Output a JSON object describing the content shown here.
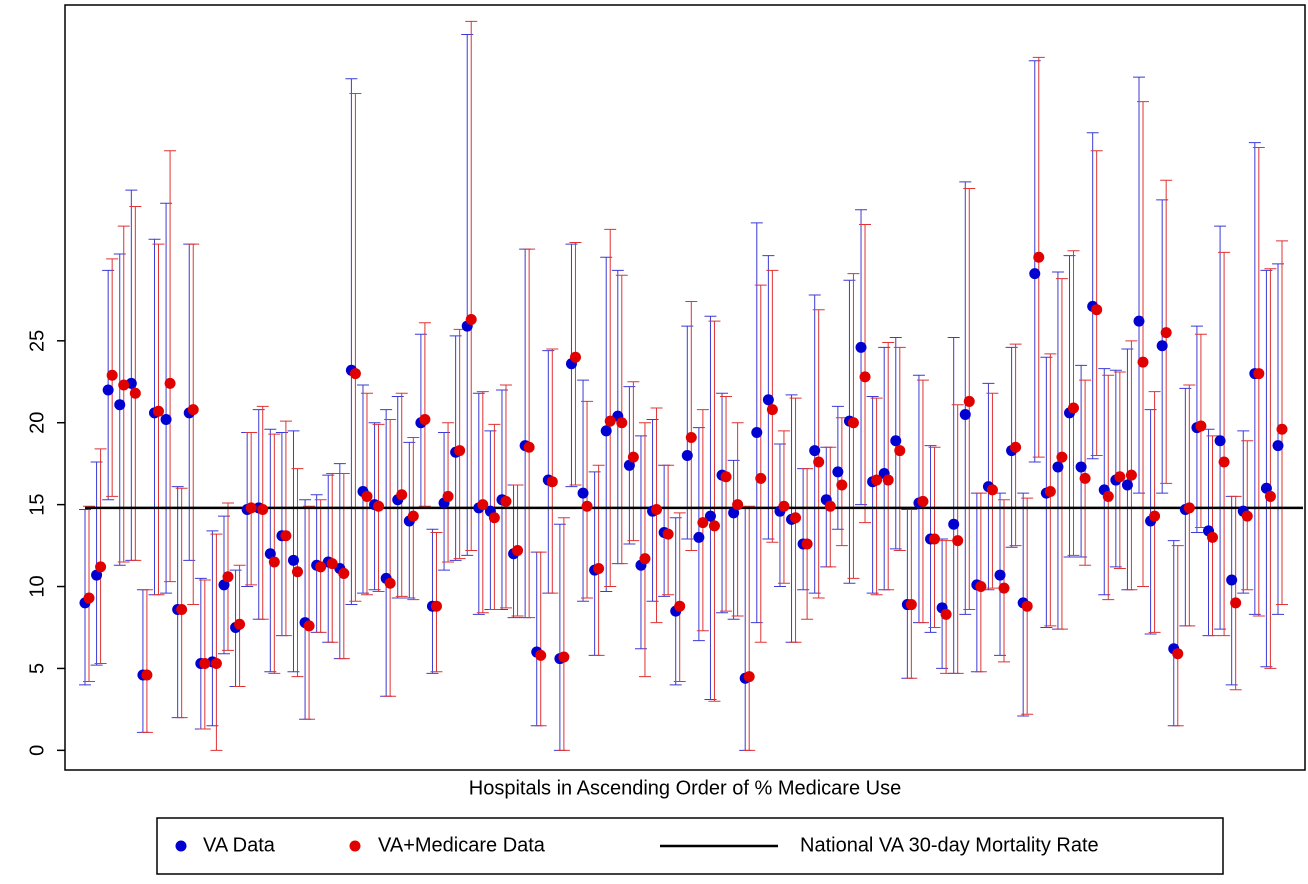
{
  "chart_data": {
    "type": "errorbar",
    "x_label": "Hospitals in Ascending Order of % Medicare Use",
    "categories": [
      null,
      null,
      null,
      null,
      null,
      null,
      null,
      null,
      null,
      null,
      null,
      null,
      null,
      null,
      null,
      null,
      null,
      null,
      null,
      null,
      null,
      null,
      null,
      null,
      null,
      null,
      null,
      null,
      null,
      null,
      null,
      null,
      null,
      null,
      null,
      null,
      null,
      null,
      null,
      null,
      null,
      null,
      null,
      null,
      null,
      null,
      null,
      null,
      null,
      null,
      null,
      null,
      null,
      null,
      null,
      null,
      null,
      null,
      null,
      null,
      null,
      null,
      null,
      null,
      null,
      null,
      null,
      null,
      null,
      null,
      null,
      null,
      null,
      null,
      null,
      null,
      null,
      null,
      null,
      null,
      null,
      null,
      null,
      null,
      null,
      null,
      null,
      null,
      null,
      null,
      null,
      null,
      null,
      null,
      null,
      null,
      null,
      null,
      null,
      null,
      null,
      null,
      null,
      null
    ],
    "ylim": [
      -1.2,
      45.5
    ],
    "yticks": [
      0,
      5,
      10,
      15,
      20,
      25
    ],
    "series": [
      {
        "name": "VA Data",
        "color": "#0000d0",
        "whisker_color": "#3b3bd6",
        "values": [
          9.0,
          10.7,
          22.0,
          21.1,
          22.4,
          4.6,
          20.6,
          20.2,
          8.6,
          20.6,
          5.3,
          5.4,
          10.1,
          7.5,
          14.7,
          14.8,
          12.0,
          13.1,
          11.6,
          7.8,
          11.3,
          11.5,
          11.1,
          23.2,
          15.8,
          15.0,
          10.5,
          15.3,
          14.0,
          20.0,
          8.8,
          15.1,
          18.2,
          25.9,
          14.8,
          14.6,
          15.3,
          12.0,
          18.6,
          6.0,
          16.5,
          5.6,
          23.6,
          15.7,
          11.0,
          19.5,
          20.4,
          17.4,
          11.3,
          14.6,
          13.3,
          8.5,
          18.0,
          13.0,
          14.3,
          16.8,
          14.5,
          4.4,
          19.4,
          21.4,
          14.6,
          14.1,
          12.6,
          18.3,
          15.3,
          17.0,
          20.1,
          24.6,
          16.4,
          16.9,
          18.9,
          8.9,
          15.1,
          12.9,
          8.7,
          13.8,
          20.5,
          10.1,
          16.1,
          10.7,
          18.3,
          9.0,
          29.1,
          15.7,
          17.3,
          20.6,
          17.3,
          27.1,
          15.9,
          16.5,
          16.2,
          26.2,
          14.0,
          24.7,
          6.2,
          14.7,
          19.7,
          13.4,
          18.9,
          10.4,
          14.6,
          23.0,
          16.0,
          18.6
        ],
        "lower": [
          4.0,
          5.2,
          15.3,
          11.3,
          11.6,
          1.1,
          9.5,
          9.6,
          2.0,
          11.6,
          1.3,
          1.5,
          5.9,
          3.9,
          10.0,
          8.0,
          4.8,
          7.0,
          4.8,
          1.9,
          7.2,
          6.6,
          5.6,
          8.9,
          9.6,
          9.8,
          3.3,
          9.3,
          9.3,
          14.8,
          4.7,
          11.0,
          11.6,
          11.9,
          8.3,
          8.6,
          8.6,
          8.1,
          8.1,
          1.5,
          9.6,
          0,
          16.1,
          9.1,
          5.8,
          9.7,
          11.4,
          12.6,
          6.2,
          9.1,
          9.4,
          4.0,
          12.9,
          6.7,
          3.1,
          8.4,
          8.0,
          0,
          7.8,
          12.9,
          10.0,
          6.6,
          9.8,
          9.6,
          11.2,
          13.5,
          10.2,
          15.0,
          9.6,
          9.8,
          12.3,
          4.4,
          7.8,
          7.2,
          5.0,
          4.7,
          8.3,
          4.8,
          9.8,
          5.8,
          12.4,
          2.1,
          17.6,
          7.5,
          7.4,
          11.8,
          11.8,
          17.8,
          9.5,
          11.2,
          9.8,
          15.7,
          7.1,
          15.7,
          1.5,
          7.6,
          13.3,
          7.0,
          7.4,
          4.0,
          9.6,
          8.3,
          5.1,
          8.3
        ],
        "upper": [
          14.7,
          17.6,
          29.3,
          30.3,
          34.2,
          9.8,
          31.2,
          33.4,
          16.1,
          30.9,
          10.5,
          13.4,
          14.3,
          11.0,
          19.4,
          20.8,
          19.6,
          19.4,
          19.5,
          15.3,
          15.6,
          16.8,
          17.5,
          41.0,
          22.3,
          20.0,
          20.8,
          21.6,
          18.8,
          25.4,
          13.5,
          19.4,
          25.3,
          43.7,
          21.8,
          19.5,
          22.0,
          16.2,
          30.6,
          12.1,
          24.4,
          13.8,
          30.9,
          22.6,
          17.0,
          30.1,
          29.3,
          22.2,
          19.2,
          20.2,
          17.4,
          14.2,
          25.9,
          19.7,
          26.5,
          21.8,
          17.7,
          14.8,
          32.2,
          30.2,
          18.7,
          21.7,
          17.2,
          27.8,
          18.5,
          21.0,
          28.7,
          33.0,
          21.6,
          24.6,
          25.2,
          14.7,
          22.9,
          18.6,
          12.9,
          25.2,
          34.7,
          15.7,
          22.4,
          15.7,
          24.6,
          15.7,
          42.1,
          24.0,
          29.2,
          30.2,
          23.5,
          37.7,
          23.3,
          23.2,
          24.5,
          41.1,
          20.8,
          33.6,
          12.8,
          22.1,
          25.9,
          19.6,
          32.0,
          15.5,
          19.5,
          37.1,
          29.3,
          29.7
        ]
      },
      {
        "name": "VA+Medicare Data",
        "color": "#e00000",
        "whisker_color": "#e03333",
        "values": [
          9.3,
          11.2,
          22.9,
          22.3,
          21.8,
          4.6,
          20.7,
          22.4,
          8.6,
          20.8,
          5.3,
          5.3,
          10.6,
          7.7,
          14.8,
          14.7,
          11.5,
          13.1,
          10.9,
          7.6,
          11.2,
          11.4,
          10.8,
          23.0,
          15.5,
          14.9,
          10.2,
          15.6,
          14.3,
          20.2,
          8.8,
          15.5,
          18.3,
          26.3,
          15.0,
          14.2,
          15.2,
          12.2,
          18.5,
          5.8,
          16.4,
          5.7,
          24.0,
          14.9,
          11.1,
          20.1,
          20.0,
          17.9,
          11.7,
          14.7,
          13.2,
          8.8,
          19.1,
          13.9,
          13.7,
          16.7,
          15.0,
          4.5,
          16.6,
          20.8,
          14.9,
          14.2,
          12.6,
          17.6,
          14.9,
          16.2,
          20.0,
          22.8,
          16.5,
          16.5,
          18.3,
          8.9,
          15.2,
          12.9,
          8.3,
          12.8,
          21.3,
          10.0,
          15.9,
          9.9,
          18.5,
          8.8,
          30.1,
          15.8,
          17.9,
          20.9,
          16.6,
          26.9,
          15.5,
          16.7,
          16.8,
          23.7,
          14.3,
          25.5,
          5.9,
          14.8,
          19.8,
          13.0,
          17.6,
          9.0,
          14.3,
          23.0,
          15.5,
          19.6
        ],
        "lower": [
          4.2,
          5.3,
          15.5,
          11.5,
          11.6,
          1.1,
          9.5,
          10.3,
          2.0,
          8.9,
          1.3,
          0,
          6.1,
          3.9,
          10.1,
          8.0,
          4.7,
          7.0,
          4.5,
          1.9,
          7.2,
          6.6,
          5.6,
          9.1,
          9.5,
          9.7,
          3.3,
          9.4,
          9.2,
          14.9,
          4.8,
          11.5,
          11.7,
          12.2,
          8.4,
          8.6,
          8.7,
          8.2,
          8.1,
          1.5,
          9.6,
          0,
          16.2,
          9.3,
          5.8,
          10.0,
          11.4,
          12.8,
          4.5,
          7.8,
          9.5,
          4.2,
          12.2,
          7.3,
          3.0,
          8.5,
          8.2,
          0,
          6.6,
          12.7,
          10.2,
          6.6,
          8.0,
          9.3,
          11.2,
          12.5,
          10.5,
          13.9,
          9.5,
          9.8,
          12.2,
          4.4,
          7.8,
          7.5,
          4.7,
          4.7,
          8.6,
          4.8,
          9.9,
          5.4,
          12.5,
          2.2,
          17.9,
          7.6,
          7.4,
          11.9,
          11.3,
          18.0,
          9.2,
          11.1,
          9.8,
          10.0,
          7.2,
          16.3,
          1.5,
          7.6,
          13.6,
          7.0,
          7.0,
          3.7,
          9.8,
          8.2,
          5.0,
          8.9
        ],
        "upper": [
          14.9,
          18.4,
          30.0,
          32.0,
          33.2,
          9.8,
          30.9,
          36.6,
          16.0,
          30.9,
          10.4,
          13.2,
          15.1,
          11.3,
          19.4,
          21.0,
          19.3,
          20.1,
          17.2,
          14.9,
          15.3,
          16.9,
          16.9,
          40.1,
          21.8,
          19.9,
          20.2,
          21.8,
          19.1,
          26.1,
          13.3,
          20.0,
          25.7,
          44.5,
          21.9,
          19.9,
          22.3,
          16.2,
          30.6,
          12.1,
          24.5,
          14.2,
          31.0,
          21.3,
          17.4,
          31.8,
          29.0,
          22.5,
          20.0,
          20.9,
          17.4,
          14.5,
          27.4,
          20.8,
          26.2,
          21.6,
          20.0,
          14.9,
          28.4,
          29.3,
          19.5,
          21.5,
          17.2,
          26.9,
          18.5,
          20.3,
          29.1,
          32.1,
          21.5,
          24.9,
          24.6,
          14.7,
          22.6,
          18.5,
          12.8,
          21.1,
          34.3,
          15.7,
          21.8,
          15.3,
          24.8,
          15.4,
          42.3,
          24.2,
          28.8,
          30.5,
          22.6,
          36.6,
          22.9,
          23.1,
          25.0,
          39.6,
          21.9,
          34.8,
          12.5,
          22.3,
          25.4,
          19.2,
          30.4,
          15.5,
          18.9,
          36.8,
          29.4,
          31.1
        ]
      }
    ],
    "reference_line": {
      "name": "National VA 30-day Mortality Rate",
      "value": 14.8,
      "color": "#000000"
    }
  }
}
